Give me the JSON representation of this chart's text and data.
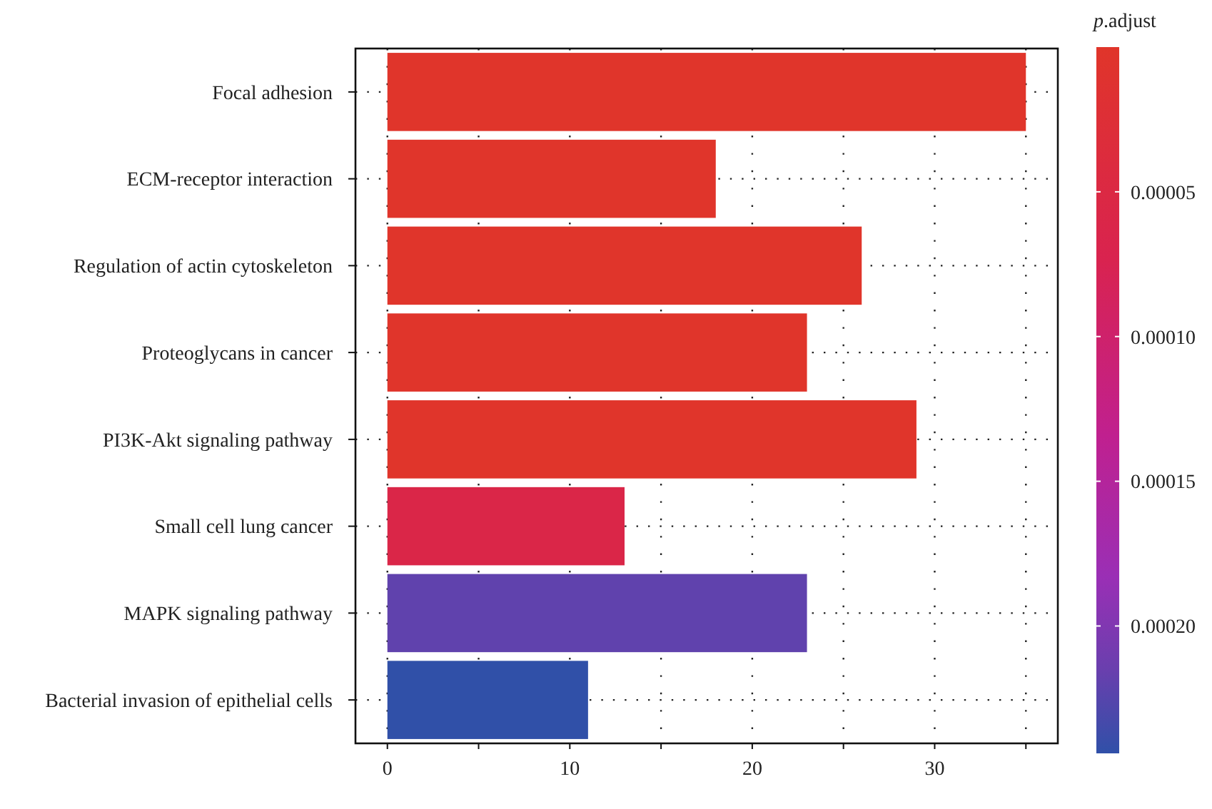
{
  "chart_data": {
    "type": "bar",
    "orientation": "horizontal",
    "categories": [
      "Focal adhesion",
      "ECM-receptor interaction",
      "Regulation of actin cytoskeleton",
      "Proteoglycans in cancer",
      "PI3K-Akt signaling pathway",
      "Small cell lung cancer",
      "MAPK signaling pathway",
      "Bacterial invasion of epithelial cells"
    ],
    "values": [
      35,
      18,
      26,
      23,
      29,
      13,
      23,
      11
    ],
    "cvalues": [
      1e-06,
      1e-06,
      1e-06,
      1e-06,
      1e-06,
      6e-05,
      0.00022,
      0.000244
    ],
    "xlim": [
      -1.75,
      36.75
    ],
    "xticks": [
      0,
      {
        "value": 5,
        "label": null
      },
      10,
      {
        "value": 15,
        "label": null
      },
      20,
      {
        "value": 25,
        "label": null
      },
      30,
      {
        "value": 35,
        "label": null
      }
    ],
    "clabel": "p.adjust",
    "clim": [
      0,
      0.000244
    ],
    "cticks": [
      {
        "value": 5e-05,
        "label": "0.00005"
      },
      {
        "value": 0.0001,
        "label": "0.00010"
      },
      {
        "value": 0.00015,
        "label": "0.00015"
      },
      {
        "value": 0.0002,
        "label": "0.00020"
      }
    ],
    "grid": true
  }
}
